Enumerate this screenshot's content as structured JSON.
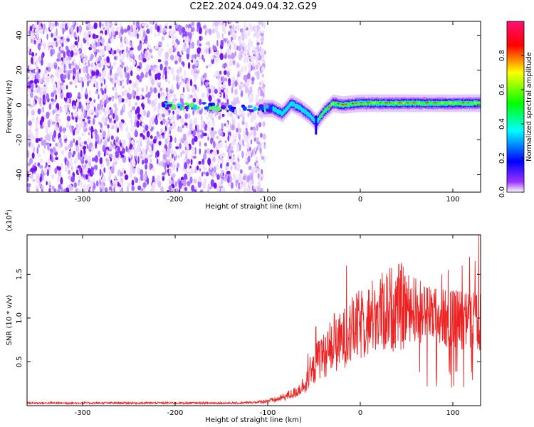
{
  "title": "C2E2.2024.049.04.32.G29",
  "chart_data": [
    {
      "type": "heatmap",
      "xlabel": "Height of straight line (km)",
      "ylabel": "Frequency (Hz)",
      "xlim": [
        -360,
        130
      ],
      "ylim": [
        -50,
        48
      ],
      "xticks": [
        -300,
        -200,
        -100,
        0,
        100
      ],
      "yticks": [
        -40,
        -20,
        0,
        20,
        40
      ],
      "colorbar": {
        "label": "Normalized spectral amplitude",
        "range": [
          0,
          1
        ],
        "ticks": [
          "0.0",
          "0.2",
          "0.4",
          "0.6",
          "0.8"
        ],
        "colormap": [
          "#ffffff",
          "#7700ee",
          "#0000ff",
          "#00ffff",
          "#00ff00",
          "#ffff00",
          "#ff0000",
          "#ff0088"
        ]
      },
      "features": {
        "noise_region_x": [
          -360,
          -103
        ],
        "signal_track": [
          [
            -210,
            0
          ],
          [
            -190,
            -1
          ],
          [
            -170,
            0
          ],
          [
            -150,
            -2
          ],
          [
            -130,
            -2
          ],
          [
            -110,
            -2
          ],
          [
            -95,
            -2
          ],
          [
            -85,
            -5
          ],
          [
            -75,
            1
          ],
          [
            -65,
            -2
          ],
          [
            -55,
            -6
          ],
          [
            -48,
            -10
          ],
          [
            -40,
            -4
          ],
          [
            -30,
            1
          ],
          [
            -20,
            0
          ],
          [
            0,
            1
          ],
          [
            50,
            1
          ],
          [
            100,
            1
          ],
          [
            130,
            1
          ]
        ]
      }
    },
    {
      "type": "line",
      "xlabel": "Height of straight line (km)",
      "ylabel": "SNR (10 * v/v)",
      "yscale_label": "(x10",
      "yscale_exp": "4",
      "xlim": [
        -360,
        130
      ],
      "ylim": [
        0,
        1.95
      ],
      "xticks": [
        -300,
        -200,
        -100,
        0,
        100
      ],
      "yticks": [
        "0.5",
        "1.0",
        "1.5"
      ],
      "series": [
        {
          "color": "#ee2222",
          "envelope": [
            [
              -360,
              0.03
            ],
            [
              -130,
              0.03
            ],
            [
              -110,
              0.04
            ],
            [
              -90,
              0.07
            ],
            [
              -70,
              0.15
            ],
            [
              -55,
              0.3
            ],
            [
              -45,
              0.55
            ],
            [
              -35,
              0.6
            ],
            [
              -20,
              0.75
            ],
            [
              -10,
              0.85
            ],
            [
              0,
              0.92
            ],
            [
              10,
              0.98
            ],
            [
              20,
              1.05
            ],
            [
              30,
              1.1
            ],
            [
              40,
              1.13
            ],
            [
              50,
              1.12
            ],
            [
              60,
              1.1
            ],
            [
              70,
              1.05
            ],
            [
              80,
              1.02
            ],
            [
              90,
              1.0
            ],
            [
              100,
              1.0
            ],
            [
              110,
              0.98
            ],
            [
              120,
              0.95
            ],
            [
              130,
              0.95
            ]
          ],
          "spikes": [
            [
              -48,
              0.9
            ],
            [
              -42,
              0.75
            ],
            [
              -28,
              1.05
            ],
            [
              -15,
              1.6
            ],
            [
              15,
              1.1
            ],
            [
              60,
              1.45
            ],
            [
              72,
              1.35
            ],
            [
              88,
              1.5
            ],
            [
              95,
              1.55
            ],
            [
              103,
              1.4
            ],
            [
              110,
              1.6
            ],
            [
              118,
              1.7
            ],
            [
              124,
              1.65
            ],
            [
              128,
              1.95
            ]
          ]
        }
      ]
    }
  ]
}
